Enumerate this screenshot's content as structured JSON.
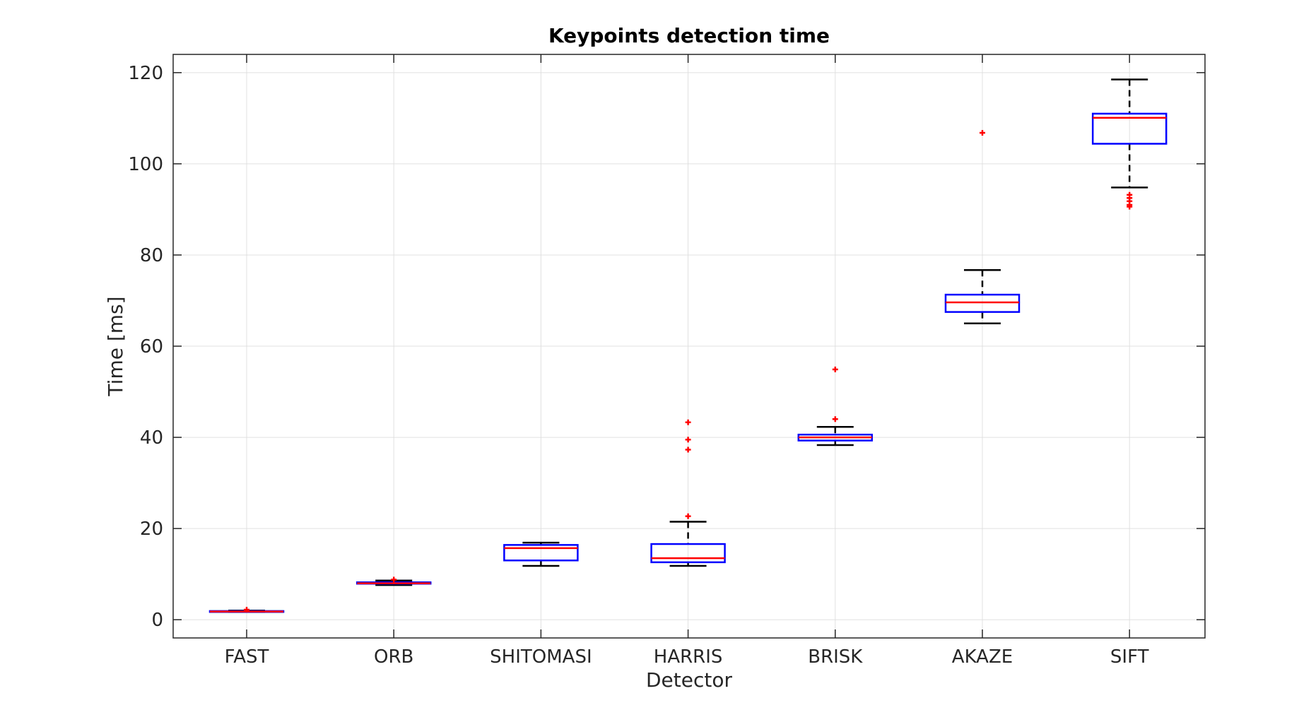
{
  "chart_data": {
    "type": "boxplot",
    "title": "Keypoints detection time",
    "xlabel": "Detector",
    "ylabel": "Time [ms]",
    "ylim": [
      -4,
      124
    ],
    "yticks": [
      0,
      20,
      40,
      60,
      80,
      100,
      120
    ],
    "grid": true,
    "categories": [
      "FAST",
      "ORB",
      "SHITOMASI",
      "HARRIS",
      "BRISK",
      "AKAZE",
      "SIFT"
    ],
    "boxes": [
      {
        "category": "FAST",
        "whisker_low": 1.7,
        "q1": 1.7,
        "median": 1.8,
        "q3": 1.9,
        "whisker_high": 2.0,
        "outliers": [
          2.2
        ]
      },
      {
        "category": "ORB",
        "whisker_low": 7.6,
        "q1": 7.9,
        "median": 8.0,
        "q3": 8.2,
        "whisker_high": 8.6,
        "outliers": [
          8.8
        ]
      },
      {
        "category": "SHITOMASI",
        "whisker_low": 11.8,
        "q1": 13.0,
        "median": 15.7,
        "q3": 16.4,
        "whisker_high": 16.9,
        "outliers": []
      },
      {
        "category": "HARRIS",
        "whisker_low": 11.8,
        "q1": 12.6,
        "median": 13.5,
        "q3": 16.6,
        "whisker_high": 21.5,
        "outliers": [
          22.7,
          37.3,
          39.5,
          43.3
        ]
      },
      {
        "category": "BRISK",
        "whisker_low": 38.3,
        "q1": 39.3,
        "median": 40.0,
        "q3": 40.6,
        "whisker_high": 42.3,
        "outliers": [
          44.0,
          54.9
        ]
      },
      {
        "category": "AKAZE",
        "whisker_low": 65.0,
        "q1": 67.5,
        "median": 69.6,
        "q3": 71.3,
        "whisker_high": 76.7,
        "outliers": [
          106.8
        ]
      },
      {
        "category": "SIFT",
        "whisker_low": 94.8,
        "q1": 104.4,
        "median": 110.1,
        "q3": 111.0,
        "whisker_high": 118.5,
        "outliers": [
          90.6,
          91.0,
          91.8,
          92.5,
          93.2
        ]
      }
    ],
    "colors": {
      "box": "#0000ff",
      "median": "#ff0000",
      "whisker": "#000000",
      "outlier": "#ff0000",
      "grid": "#e0e0e0",
      "axes": "#262626"
    }
  }
}
